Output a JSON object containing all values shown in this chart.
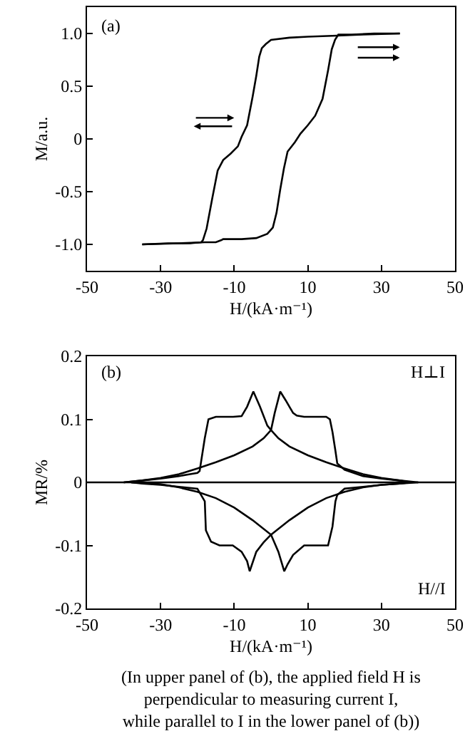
{
  "chart_data": [
    {
      "type": "line",
      "xlabel": "H/(kA·m⁻¹)",
      "ylabel": "M/a.u.",
      "annotations": [
        "(a)"
      ],
      "xlim": [
        -50,
        50
      ],
      "xticks": [
        -50,
        -30,
        -10,
        10,
        30,
        50
      ],
      "ylim": [
        -1.25,
        1.25
      ],
      "yticks": [
        {
          "value": -1,
          "label": "-1.0"
        },
        -0.5,
        0,
        0.5,
        {
          "value": 1,
          "label": "1.0"
        }
      ],
      "grid": false,
      "marker": "none",
      "line_style": "solid",
      "series": [
        {
          "color": "#000000",
          "x": [
            35,
            25,
            18,
            10,
            5,
            0,
            -1.4,
            -2.5,
            -3.2,
            -4,
            -5,
            -6.5,
            -8,
            -9,
            -11,
            -13,
            -14.5,
            -16,
            -17.5,
            -18.5,
            -19,
            -22,
            -28,
            -35
          ],
          "values": [
            1.0,
            0.99,
            0.98,
            0.97,
            0.96,
            0.94,
            0.9,
            0.86,
            0.78,
            0.6,
            0.4,
            0.13,
            0.02,
            -0.07,
            -0.14,
            -0.2,
            -0.3,
            -0.57,
            -0.85,
            -0.96,
            -0.98,
            -0.99,
            -0.99,
            -1.0
          ]
        },
        {
          "color": "#000000",
          "x": [
            -35,
            -25,
            -18,
            -15,
            -13.5,
            -13,
            -12,
            -8,
            -4,
            -1,
            0.5,
            1.5,
            2.5,
            3.5,
            4.5,
            6.5,
            8,
            10,
            12,
            14,
            15.5,
            16.5,
            17.4,
            18.3,
            22,
            28,
            35
          ],
          "values": [
            -1.0,
            -0.99,
            -0.98,
            -0.98,
            -0.96,
            -0.95,
            -0.95,
            -0.95,
            -0.94,
            -0.9,
            -0.84,
            -0.7,
            -0.48,
            -0.28,
            -0.12,
            -0.03,
            0.05,
            0.13,
            0.22,
            0.38,
            0.65,
            0.85,
            0.94,
            0.99,
            0.99,
            1.0,
            1.0
          ]
        }
      ]
    },
    {
      "type": "line",
      "xlabel": "H/(kA·m⁻¹)",
      "ylabel": "MR/%",
      "annotations": [
        "(b)",
        "H⊥I",
        "H//I",
        "(In upper panel of (b), the applied field H is\nperpendicular to measuring current I,\nwhile parallel to I in the lower panel of (b))"
      ],
      "xlim": [
        -50,
        50
      ],
      "xticks": [
        -50,
        -30,
        -10,
        10,
        30,
        50
      ],
      "ylim": [
        -0.2,
        0.2
      ],
      "yticks": [
        -0.2,
        -0.1,
        0,
        0.1,
        0.2
      ],
      "grid": false,
      "marker": "none",
      "line_style": "solid",
      "ref_lines": [
        {
          "axis": "y",
          "value": 0,
          "color": "#000000"
        }
      ],
      "series": [
        {
          "color": "#000000",
          "x": [
            40,
            35,
            30,
            25,
            20,
            18,
            17.5,
            16.7,
            16,
            15,
            12,
            9,
            7,
            6,
            5,
            4,
            2.5,
            1,
            0,
            -2,
            -5,
            -10,
            -15,
            -20,
            -25,
            -30,
            -35,
            -40
          ],
          "values": [
            0,
            0.003,
            0.006,
            0.01,
            0.02,
            0.03,
            0.05,
            0.08,
            0.1,
            0.104,
            0.104,
            0.104,
            0.106,
            0.11,
            0.12,
            0.13,
            0.144,
            0.11,
            0.083,
            0.07,
            0.057,
            0.043,
            0.032,
            0.022,
            0.013,
            0.007,
            0.003,
            0
          ]
        },
        {
          "color": "#000000",
          "x": [
            -40,
            -35,
            -30,
            -25,
            -22,
            -20,
            -19.4,
            -18,
            -17,
            -15,
            -12,
            -10.3,
            -8,
            -6.5,
            -4.8,
            -3,
            -1,
            0,
            2,
            5,
            10,
            15,
            20,
            25,
            30,
            35,
            38
          ],
          "values": [
            0,
            0.003,
            0.006,
            0.01,
            0.013,
            0.015,
            0.018,
            0.07,
            0.1,
            0.104,
            0.104,
            0.104,
            0.105,
            0.12,
            0.144,
            0.12,
            0.09,
            0.083,
            0.07,
            0.057,
            0.043,
            0.032,
            0.022,
            0.013,
            0.007,
            0.003,
            0
          ]
        },
        {
          "color": "#000000",
          "x": [
            -38,
            -35,
            -30,
            -25,
            -20,
            -18,
            -17.7,
            -16.3,
            -14,
            -10.4,
            -8,
            -6.5,
            -5.8,
            -4,
            -2,
            0,
            5,
            10,
            15,
            20,
            25,
            30,
            35,
            38
          ],
          "values": [
            0,
            -0.002,
            -0.004,
            -0.007,
            -0.01,
            -0.03,
            -0.076,
            -0.094,
            -0.1,
            -0.1,
            -0.11,
            -0.125,
            -0.141,
            -0.11,
            -0.095,
            -0.083,
            -0.06,
            -0.04,
            -0.025,
            -0.015,
            -0.008,
            -0.004,
            -0.002,
            0
          ]
        },
        {
          "color": "#000000",
          "x": [
            40,
            35,
            30,
            25,
            20,
            18,
            17.5,
            16.7,
            15.5,
            12,
            9,
            6,
            4.5,
            3.6,
            2,
            0,
            -5,
            -10,
            -15,
            -20,
            -25,
            -30,
            -35,
            -38
          ],
          "values": [
            0,
            -0.002,
            -0.004,
            -0.007,
            -0.01,
            -0.02,
            -0.03,
            -0.07,
            -0.1,
            -0.1,
            -0.1,
            -0.115,
            -0.13,
            -0.141,
            -0.11,
            -0.083,
            -0.06,
            -0.04,
            -0.025,
            -0.015,
            -0.008,
            -0.003,
            -0.001,
            0
          ]
        }
      ]
    }
  ]
}
